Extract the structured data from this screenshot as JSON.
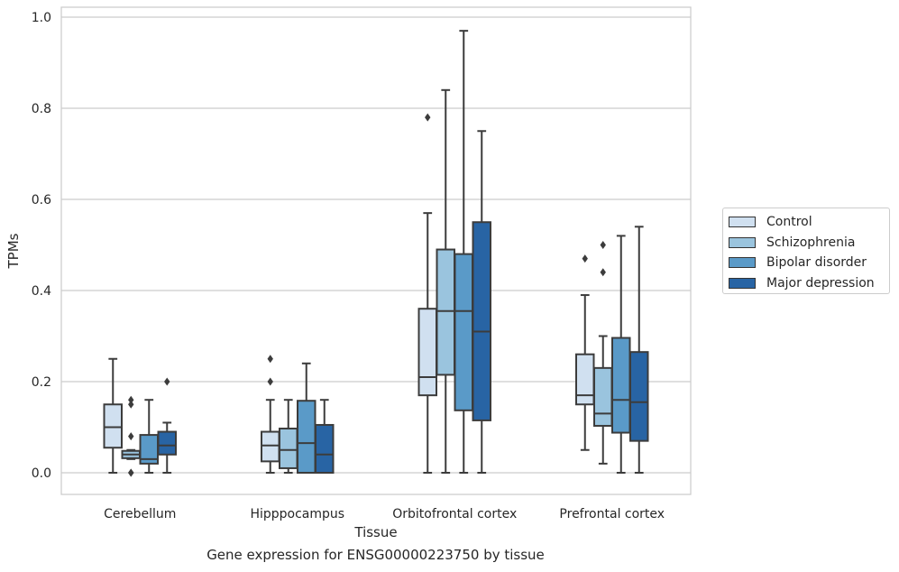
{
  "chart_data": {
    "type": "box",
    "xlabel": "Tissue",
    "ylabel": "TPMs",
    "caption": "Gene expression for ENSG00000223750 by tissue",
    "ylim": [
      -0.05,
      1.02
    ],
    "yticks": [
      "0.0",
      "0.2",
      "0.4",
      "0.6",
      "0.8",
      "1.0"
    ],
    "grid": "horizontal",
    "legend_position": "right",
    "categories": [
      "Cerebellum",
      "Hipppocampus",
      "Orbitofrontal cortex",
      "Prefrontal cortex"
    ],
    "series": [
      {
        "name": "Control",
        "color": "#d0e0f0",
        "boxes": [
          {
            "whislo": 0.0,
            "q1": 0.055,
            "median": 0.1,
            "q3": 0.15,
            "whishi": 0.25,
            "fliers": []
          },
          {
            "whislo": 0.0,
            "q1": 0.025,
            "median": 0.06,
            "q3": 0.09,
            "whishi": 0.16,
            "fliers": [
              0.2,
              0.25
            ]
          },
          {
            "whislo": 0.0,
            "q1": 0.17,
            "median": 0.21,
            "q3": 0.36,
            "whishi": 0.57,
            "fliers": [
              0.78
            ]
          },
          {
            "whislo": 0.05,
            "q1": 0.15,
            "median": 0.17,
            "q3": 0.26,
            "whishi": 0.39,
            "fliers": [
              0.47
            ]
          }
        ]
      },
      {
        "name": "Schizophrenia",
        "color": "#9ac4de",
        "boxes": [
          {
            "whislo": 0.03,
            "q1": 0.032,
            "median": 0.04,
            "q3": 0.048,
            "whishi": 0.05,
            "fliers": [
              0.0,
              0.0,
              0.08,
              0.15,
              0.16
            ]
          },
          {
            "whislo": 0.0,
            "q1": 0.01,
            "median": 0.05,
            "q3": 0.097,
            "whishi": 0.16,
            "fliers": []
          },
          {
            "whislo": 0.0,
            "q1": 0.215,
            "median": 0.355,
            "q3": 0.49,
            "whishi": 0.84,
            "fliers": []
          },
          {
            "whislo": 0.02,
            "q1": 0.103,
            "median": 0.13,
            "q3": 0.23,
            "whishi": 0.3,
            "fliers": [
              0.44,
              0.5
            ]
          }
        ]
      },
      {
        "name": "Bipolar disorder",
        "color": "#5a9ac8",
        "boxes": [
          {
            "whislo": 0.0,
            "q1": 0.02,
            "median": 0.03,
            "q3": 0.083,
            "whishi": 0.16,
            "fliers": []
          },
          {
            "whislo": 0.0,
            "q1": 0.0,
            "median": 0.065,
            "q3": 0.158,
            "whishi": 0.24,
            "fliers": []
          },
          {
            "whislo": 0.0,
            "q1": 0.137,
            "median": 0.355,
            "q3": 0.48,
            "whishi": 0.97,
            "fliers": []
          },
          {
            "whislo": 0.0,
            "q1": 0.088,
            "median": 0.16,
            "q3": 0.296,
            "whishi": 0.52,
            "fliers": []
          }
        ]
      },
      {
        "name": "Major depression",
        "color": "#2864a4",
        "boxes": [
          {
            "whislo": 0.0,
            "q1": 0.04,
            "median": 0.06,
            "q3": 0.09,
            "whishi": 0.11,
            "fliers": [
              0.2
            ]
          },
          {
            "whislo": 0.0,
            "q1": 0.0,
            "median": 0.04,
            "q3": 0.105,
            "whishi": 0.16,
            "fliers": []
          },
          {
            "whislo": 0.0,
            "q1": 0.115,
            "median": 0.31,
            "q3": 0.55,
            "whishi": 0.75,
            "fliers": []
          },
          {
            "whislo": 0.0,
            "q1": 0.07,
            "median": 0.155,
            "q3": 0.265,
            "whishi": 0.54,
            "fliers": []
          }
        ]
      }
    ]
  }
}
